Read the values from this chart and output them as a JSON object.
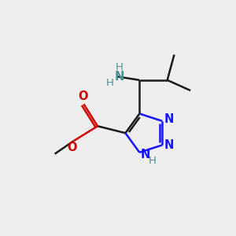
{
  "bg_color": "#eeeeee",
  "bond_color": "#1a1a1a",
  "n_color": "#1414ff",
  "o_color": "#cc0000",
  "nh_color": "#4a9090",
  "line_width": 1.8,
  "font_size": 10.5,
  "fig_size": [
    3.0,
    3.0
  ],
  "dpi": 100,
  "xlim": [
    0,
    10
  ],
  "ylim": [
    0,
    10
  ]
}
